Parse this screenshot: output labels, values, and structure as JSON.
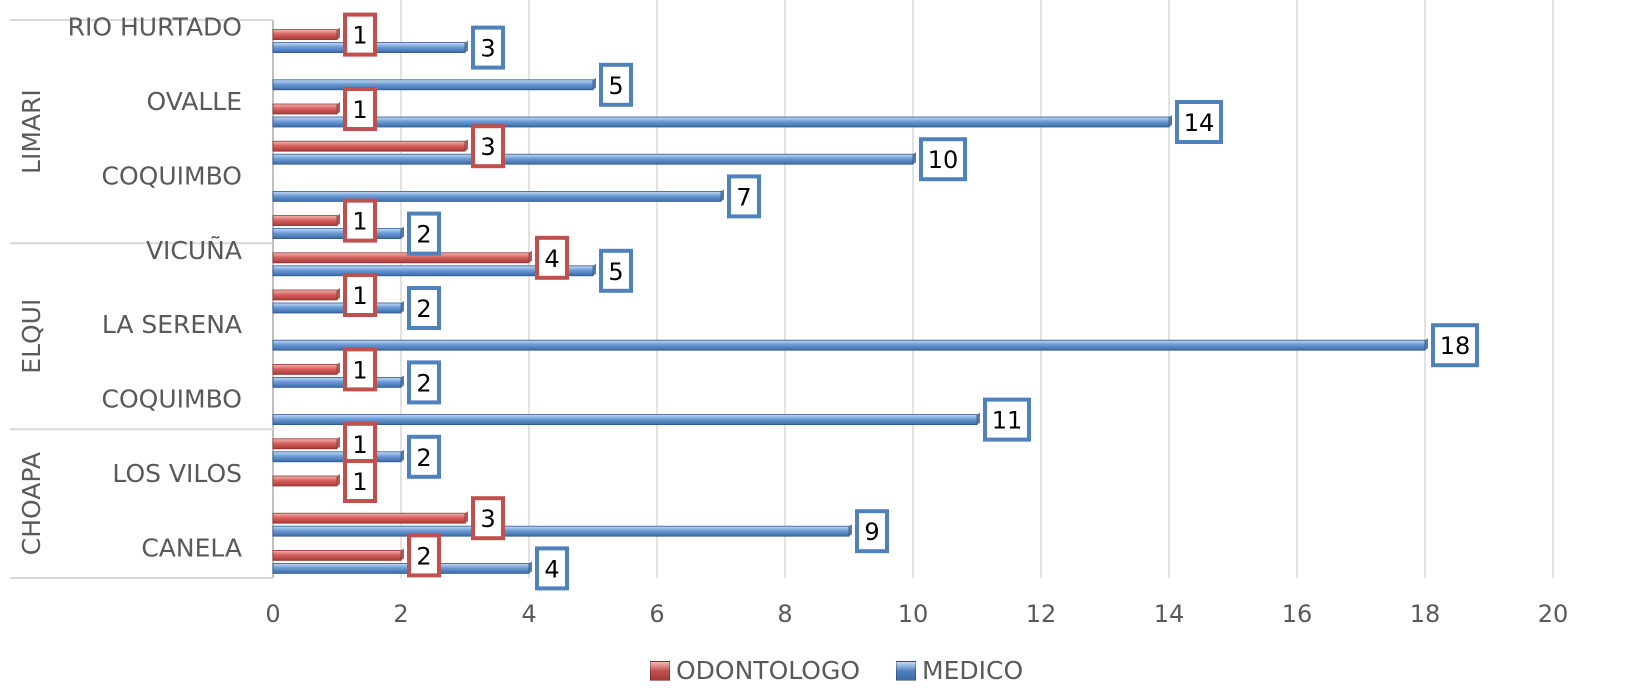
{
  "chart_data": {
    "type": "bar",
    "orientation": "horizontal",
    "xlim": [
      0,
      20
    ],
    "x_ticks": [
      "0",
      "2",
      "4",
      "6",
      "8",
      "10",
      "12",
      "14",
      "16",
      "18",
      "20"
    ],
    "grid": true,
    "legend_position": "bottom",
    "groups": [
      {
        "name": "LIMARI",
        "first_row": 0,
        "last_row": 5
      },
      {
        "name": "ELQUI",
        "first_row": 6,
        "last_row": 10
      },
      {
        "name": "CHOAPA",
        "first_row": 11,
        "last_row": 14
      }
    ],
    "rows": [
      {
        "label": "RIO HURTADO",
        "odontologo": 1,
        "medico": 3
      },
      {
        "label": "",
        "odontologo": null,
        "medico": 5
      },
      {
        "label": "OVALLE",
        "odontologo": 1,
        "medico": 14
      },
      {
        "label": "",
        "odontologo": 3,
        "medico": 10
      },
      {
        "label": "COQUIMBO",
        "odontologo": null,
        "medico": 7
      },
      {
        "label": "",
        "odontologo": 1,
        "medico": 2
      },
      {
        "label": "VICUÑA",
        "odontologo": 4,
        "medico": 5
      },
      {
        "label": "",
        "odontologo": 1,
        "medico": 2
      },
      {
        "label": "LA SERENA",
        "odontologo": null,
        "medico": 18
      },
      {
        "label": "",
        "odontologo": 1,
        "medico": 2
      },
      {
        "label": "COQUIMBO",
        "odontologo": null,
        "medico": 11
      },
      {
        "label": "",
        "odontologo": 1,
        "medico": 2
      },
      {
        "label": "LOS VILOS",
        "odontologo": 1,
        "medico": null
      },
      {
        "label": "",
        "odontologo": 3,
        "medico": 9
      },
      {
        "label": "CANELA",
        "odontologo": 2,
        "medico": 4
      }
    ],
    "series": [
      {
        "name": "ODONTOLOGO",
        "key": "odontologo",
        "color": "#c0504d"
      },
      {
        "name": "MEDICO",
        "key": "medico",
        "color": "#4f81bd"
      }
    ]
  },
  "legend": {
    "odontologo": "ODONTOLOGO",
    "medico": "MEDICO"
  }
}
